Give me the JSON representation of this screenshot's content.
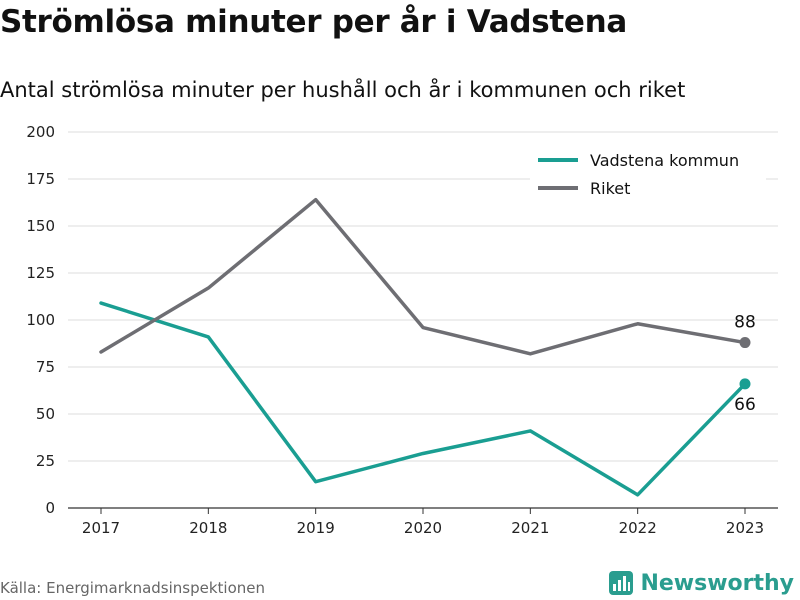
{
  "title": "Strömlösa minuter per år i Vadstena",
  "subtitle": "Antal strömlösa minuter per hushåll och år i kommunen och riket",
  "source": "Källa: Energimarknadsinspektionen",
  "brand": {
    "name": "Newsworthy",
    "icon": "newsworthy-logo-icon",
    "color": "#2a9d8f"
  },
  "chart_data": {
    "type": "line",
    "categories": [
      "2017",
      "2018",
      "2019",
      "2020",
      "2021",
      "2022",
      "2023"
    ],
    "series": [
      {
        "name": "Vadstena kommun",
        "color": "#1a9e92",
        "values": [
          109,
          91,
          14,
          29,
          41,
          7,
          66
        ],
        "end_label": "66"
      },
      {
        "name": "Riket",
        "color": "#6e6e73",
        "values": [
          83,
          117,
          164,
          96,
          82,
          98,
          88
        ],
        "end_label": "88"
      }
    ],
    "ylim": [
      0,
      200
    ],
    "yticks": [
      "0",
      "25",
      "50",
      "75",
      "100",
      "125",
      "150",
      "175",
      "200"
    ],
    "xlabel": "",
    "ylabel": "",
    "grid": true,
    "legend_position": "top-right"
  }
}
